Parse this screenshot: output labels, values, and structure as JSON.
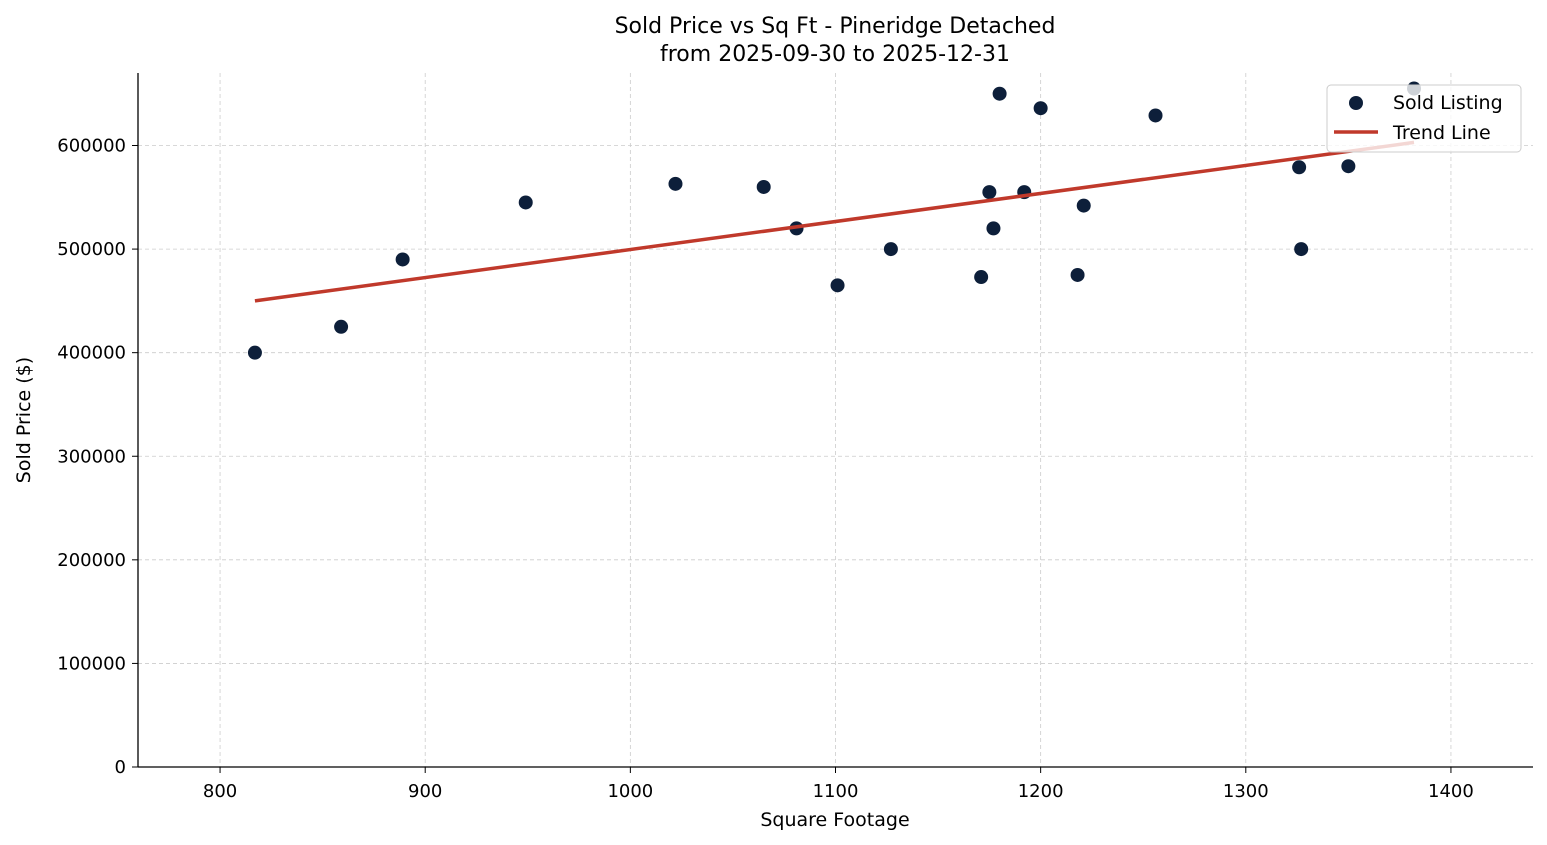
{
  "chart_data": {
    "type": "scatter",
    "title": "Sold Price vs Sq Ft - Pineridge Detached",
    "subtitle": "from 2025-09-30 to 2025-12-31",
    "xlabel": "Square Footage",
    "ylabel": "Sold Price ($)",
    "xlim": [
      760,
      1440
    ],
    "ylim": [
      0,
      670000
    ],
    "xticks": [
      800,
      900,
      1000,
      1100,
      1200,
      1300,
      1400
    ],
    "yticks": [
      0,
      100000,
      200000,
      300000,
      400000,
      500000,
      600000
    ],
    "grid": true,
    "legend_position": "top-right",
    "series": [
      {
        "name": "Sold Listing",
        "type": "scatter",
        "color": "#0d1f3a",
        "x": [
          817,
          859,
          889,
          949,
          1022,
          1065,
          1081,
          1101,
          1127,
          1171,
          1175,
          1177,
          1180,
          1192,
          1200,
          1218,
          1221,
          1256,
          1326,
          1327,
          1350,
          1382
        ],
        "y": [
          400000,
          425000,
          490000,
          545000,
          563000,
          560000,
          520000,
          465000,
          500000,
          473000,
          555000,
          520000,
          650000,
          555000,
          636000,
          475000,
          542000,
          629000,
          579000,
          500000,
          580000,
          655000
        ]
      },
      {
        "name": "Trend Line",
        "type": "line",
        "color": "#c0392b",
        "x": [
          817,
          1382
        ],
        "y": [
          450000,
          603000
        ]
      }
    ]
  }
}
